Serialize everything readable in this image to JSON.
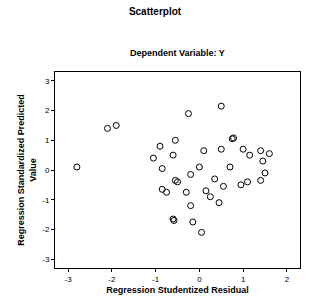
{
  "chart_data": {
    "type": "scatter",
    "title": "Scatterplot",
    "subtitle": "Dependent Variable: Y",
    "xlabel": "Regression Studentized Residual",
    "ylabel": "Regression Standardized Predicted Value",
    "x": [
      -2.8,
      -2.1,
      -1.9,
      -1.05,
      -0.9,
      -0.85,
      -0.85,
      -0.75,
      -0.6,
      -0.55,
      -0.55,
      -0.5,
      -0.6,
      -0.58,
      -0.25,
      -0.2,
      -0.3,
      -0.15,
      0.0,
      0.1,
      0.15,
      0.05,
      -0.2,
      0.25,
      0.35,
      0.45,
      0.5,
      0.5,
      0.55,
      0.75,
      0.78,
      0.7,
      0.95,
      1.0,
      1.15,
      1.1,
      1.4,
      1.45,
      1.5,
      1.6,
      1.4
    ],
    "y": [
      0.1,
      1.4,
      1.5,
      0.4,
      0.8,
      0.05,
      -0.65,
      -0.75,
      0.5,
      1.0,
      -0.35,
      -0.4,
      -1.65,
      -1.7,
      1.9,
      -0.15,
      -0.75,
      -1.75,
      0.1,
      0.65,
      -0.7,
      -2.1,
      -1.2,
      -0.9,
      -0.3,
      -1.1,
      2.15,
      0.7,
      -0.55,
      1.05,
      1.08,
      0.1,
      -0.5,
      0.7,
      0.5,
      -0.4,
      0.65,
      0.3,
      -0.1,
      0.55,
      -0.35
    ],
    "xlim": [
      -3.3,
      2.3
    ],
    "ylim": [
      -3.3,
      3.3
    ],
    "xticks": [
      -3,
      -2,
      -1,
      0,
      1,
      2
    ],
    "yticks": [
      -3,
      -2,
      -1,
      0,
      1,
      2,
      3
    ],
    "marker": "circle-open",
    "color": "#000000",
    "grid": false
  }
}
